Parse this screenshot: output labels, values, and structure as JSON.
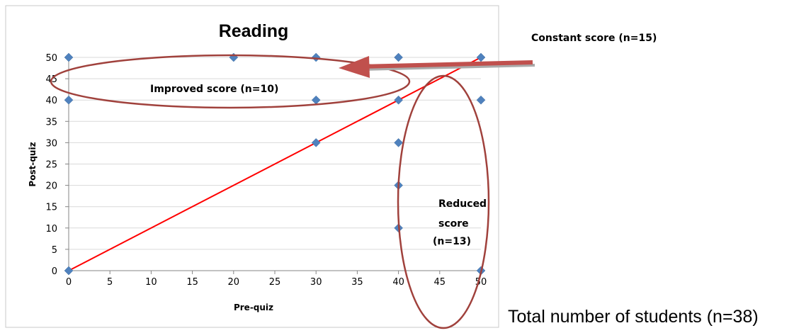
{
  "chart_data": {
    "type": "scatter",
    "title": "Reading",
    "xlabel": "Pre-quiz",
    "ylabel": "Post-quiz",
    "xlim": [
      0,
      50
    ],
    "ylim": [
      0,
      50
    ],
    "xticks": [
      0,
      5,
      10,
      15,
      20,
      25,
      30,
      35,
      40,
      45,
      50
    ],
    "yticks": [
      0,
      5,
      10,
      15,
      20,
      25,
      30,
      35,
      40,
      45,
      50
    ],
    "grid": "horizontal",
    "points": [
      {
        "x": 0,
        "y": 50
      },
      {
        "x": 0,
        "y": 40
      },
      {
        "x": 0,
        "y": 0
      },
      {
        "x": 20,
        "y": 50
      },
      {
        "x": 30,
        "y": 50
      },
      {
        "x": 30,
        "y": 40
      },
      {
        "x": 30,
        "y": 30
      },
      {
        "x": 40,
        "y": 50
      },
      {
        "x": 40,
        "y": 40
      },
      {
        "x": 40,
        "y": 30
      },
      {
        "x": 40,
        "y": 20
      },
      {
        "x": 40,
        "y": 10
      },
      {
        "x": 50,
        "y": 50
      },
      {
        "x": 50,
        "y": 40
      },
      {
        "x": 50,
        "y": 0
      }
    ],
    "reference_line": {
      "x": [
        0,
        50
      ],
      "y": [
        0,
        50
      ]
    },
    "colors": {
      "marker": "#4F81BD",
      "reference_line": "#FF0000",
      "annotation_ellipse": "#A0413C",
      "arrow": "#C0504D",
      "gridline": "#D9D9D9",
      "axis": "#868686"
    },
    "annotations": {
      "improved": "Improved score (n=10)",
      "constant": "Constant score (n=15)",
      "reduced_lines": [
        "Reduced",
        "score",
        "(n=13)"
      ],
      "total": "Total number of students (n=38)"
    }
  }
}
